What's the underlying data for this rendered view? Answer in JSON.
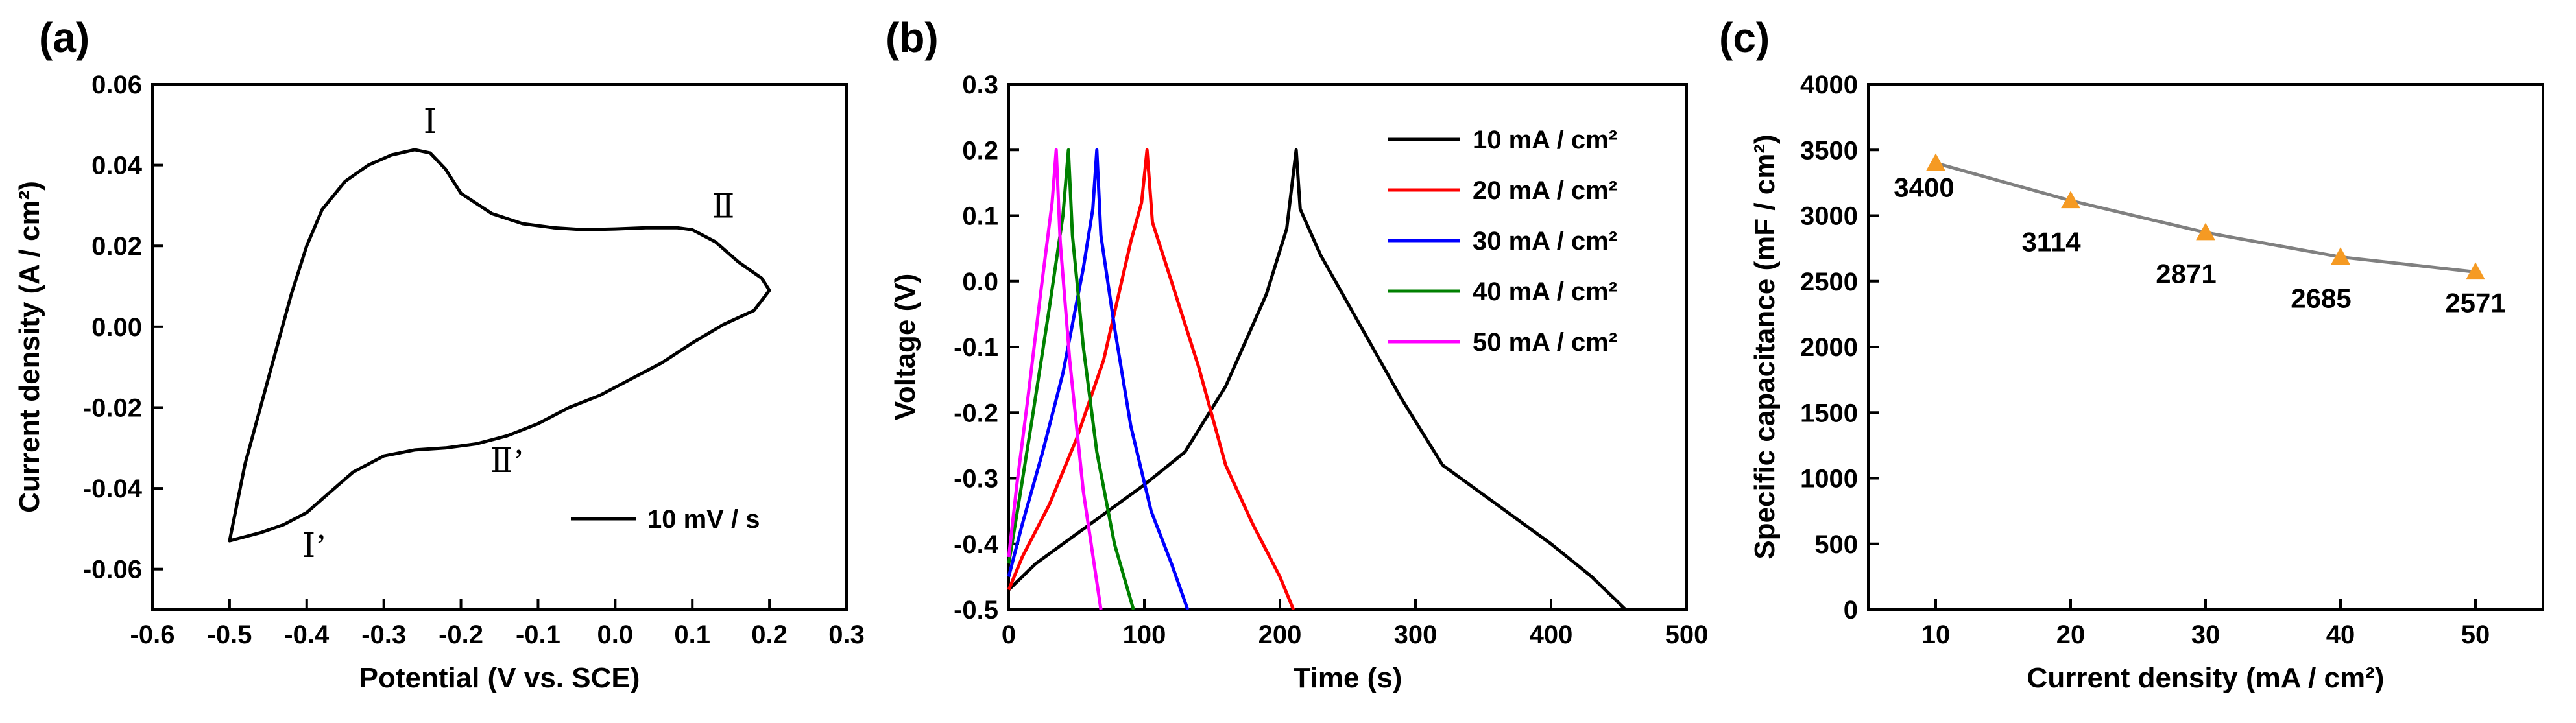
{
  "panel_labels": [
    "(a)",
    "(b)",
    "(c)"
  ],
  "chart_data": [
    {
      "type": "line",
      "panel": "(a)",
      "xlabel": "Potential (V vs. SCE)",
      "ylabel": "Current density (A / cm²)",
      "xlim": [
        -0.6,
        0.3
      ],
      "ylim": [
        -0.07,
        0.06
      ],
      "xticks": [
        -0.6,
        -0.5,
        -0.4,
        -0.3,
        -0.2,
        -0.1,
        0.0,
        0.1,
        0.2,
        0.3
      ],
      "xtick_labels": [
        "-0.6",
        "-0.5",
        "-0.4",
        "-0.3",
        "-0.2",
        "-0.1",
        "0.0",
        "0.1",
        "0.2",
        "0.3"
      ],
      "yticks": [
        -0.06,
        -0.04,
        -0.02,
        0.0,
        0.02,
        0.04,
        0.06
      ],
      "ytick_labels": [
        "-0.06",
        "-0.04",
        "-0.02",
        "0.00",
        "0.02",
        "0.04",
        "0.06"
      ],
      "legend": {
        "placement": "bottom-right",
        "entries": [
          "10 mV / s"
        ]
      },
      "series": [
        {
          "name": "10 mV / s",
          "color": "#000000",
          "x": [
            -0.5,
            -0.48,
            -0.45,
            -0.42,
            -0.4,
            -0.38,
            -0.35,
            -0.32,
            -0.29,
            -0.26,
            -0.24,
            -0.22,
            -0.2,
            -0.16,
            -0.12,
            -0.08,
            -0.04,
            0.0,
            0.04,
            0.08,
            0.1,
            0.13,
            0.16,
            0.19,
            0.2,
            0.18,
            0.14,
            0.1,
            0.06,
            0.02,
            -0.02,
            -0.06,
            -0.1,
            -0.14,
            -0.18,
            -0.22,
            -0.26,
            -0.3,
            -0.34,
            -0.37,
            -0.4,
            -0.43,
            -0.46,
            -0.5
          ],
          "y": [
            -0.053,
            -0.034,
            -0.013,
            0.008,
            0.02,
            0.029,
            0.036,
            0.04,
            0.0425,
            0.0438,
            0.043,
            0.039,
            0.033,
            0.028,
            0.0255,
            0.0245,
            0.024,
            0.0242,
            0.0245,
            0.0245,
            0.024,
            0.021,
            0.016,
            0.012,
            0.009,
            0.004,
            0.0005,
            -0.004,
            -0.009,
            -0.013,
            -0.017,
            -0.02,
            -0.024,
            -0.027,
            -0.029,
            -0.03,
            -0.0305,
            -0.032,
            -0.036,
            -0.041,
            -0.046,
            -0.049,
            -0.051,
            -0.053
          ]
        }
      ],
      "annotations": [
        {
          "text": "Ⅰ",
          "x": -0.24,
          "y": 0.048
        },
        {
          "text": "Ⅱ",
          "x": 0.14,
          "y": 0.027
        },
        {
          "text": "Ⅱ’",
          "x": -0.14,
          "y": -0.036
        },
        {
          "text": "Ⅰ’",
          "x": -0.39,
          "y": -0.057
        }
      ]
    },
    {
      "type": "line",
      "panel": "(b)",
      "xlabel": "Time (s)",
      "ylabel": "Voltage (V)",
      "xlim": [
        0,
        500
      ],
      "ylim": [
        -0.5,
        0.3
      ],
      "xticks": [
        0,
        100,
        200,
        300,
        400,
        500
      ],
      "xtick_labels": [
        "0",
        "100",
        "200",
        "300",
        "400",
        "500"
      ],
      "yticks": [
        -0.5,
        -0.4,
        -0.3,
        -0.2,
        -0.1,
        0.0,
        0.1,
        0.2,
        0.3
      ],
      "ytick_labels": [
        "-0.5",
        "-0.4",
        "-0.3",
        "-0.2",
        "-0.1",
        "0.0",
        "0.1",
        "0.2",
        "0.3"
      ],
      "legend": {
        "placement": "top-right"
      },
      "series": [
        {
          "name": "10 mA / cm²",
          "color": "#000000",
          "x": [
            0,
            20,
            60,
            100,
            130,
            160,
            190,
            205,
            212,
            215,
            230,
            260,
            290,
            320,
            360,
            400,
            430,
            455
          ],
          "y": [
            -0.47,
            -0.43,
            -0.37,
            -0.31,
            -0.26,
            -0.16,
            -0.02,
            0.08,
            0.2,
            0.11,
            0.04,
            -0.07,
            -0.18,
            -0.28,
            -0.34,
            -0.4,
            -0.45,
            -0.5
          ]
        },
        {
          "name": "20 mA / cm²",
          "color": "#ff0000",
          "x": [
            0,
            10,
            30,
            50,
            70,
            90,
            98,
            102,
            106,
            120,
            140,
            160,
            180,
            200,
            210
          ],
          "y": [
            -0.47,
            -0.42,
            -0.34,
            -0.24,
            -0.12,
            0.06,
            0.12,
            0.2,
            0.09,
            0.0,
            -0.13,
            -0.28,
            -0.37,
            -0.45,
            -0.5
          ]
        },
        {
          "name": "30 mA / cm²",
          "color": "#0000ff",
          "x": [
            0,
            10,
            25,
            40,
            55,
            62,
            65,
            68,
            78,
            90,
            105,
            120,
            132
          ],
          "y": [
            -0.45,
            -0.37,
            -0.26,
            -0.14,
            0.02,
            0.11,
            0.2,
            0.07,
            -0.07,
            -0.22,
            -0.35,
            -0.43,
            -0.5
          ]
        },
        {
          "name": "40 mA / cm²",
          "color": "#008000",
          "x": [
            0,
            8,
            18,
            30,
            40,
            44,
            47,
            55,
            65,
            78,
            92
          ],
          "y": [
            -0.43,
            -0.33,
            -0.2,
            -0.04,
            0.1,
            0.2,
            0.07,
            -0.1,
            -0.26,
            -0.4,
            -0.5
          ]
        },
        {
          "name": "50 mA / cm²",
          "color": "#ff00ff",
          "x": [
            0,
            6,
            14,
            24,
            32,
            35,
            38,
            45,
            55,
            68
          ],
          "y": [
            -0.42,
            -0.31,
            -0.18,
            -0.01,
            0.12,
            0.2,
            0.06,
            -0.12,
            -0.32,
            -0.5
          ]
        }
      ]
    },
    {
      "type": "scatter",
      "panel": "(c)",
      "xlabel": "Current density (mA / cm²)",
      "ylabel": "Specific capacitance (mF / cm²)",
      "xlim": [
        5,
        55
      ],
      "ylim": [
        0,
        4000
      ],
      "xticks": [
        10,
        20,
        30,
        40,
        50
      ],
      "xtick_labels": [
        "10",
        "20",
        "30",
        "40",
        "50"
      ],
      "yticks": [
        0,
        500,
        1000,
        1500,
        2000,
        2500,
        3000,
        3500,
        4000
      ],
      "ytick_labels": [
        "0",
        "500",
        "1000",
        "1500",
        "2000",
        "2500",
        "3000",
        "3500",
        "4000"
      ],
      "marker_color": "#f59a23",
      "line_color": "#808080",
      "x": [
        10,
        20,
        30,
        40,
        50
      ],
      "y": [
        3400,
        3114,
        2871,
        2685,
        2571
      ],
      "data_labels": [
        "3400",
        "3114",
        "2871",
        "2685",
        "2571"
      ]
    }
  ]
}
